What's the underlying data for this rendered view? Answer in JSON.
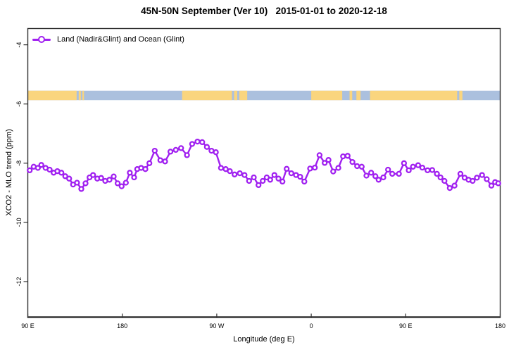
{
  "title": "45N-50N September (Ver 10)   2015-01-01 to 2020-12-18",
  "legend": {
    "label": "Land (Nadir&Glint) and Ocean (Glint)",
    "color": "#A020F0"
  },
  "chart_data": {
    "type": "line",
    "title": "45N-50N September (Ver 10)   2015-01-01 to 2020-12-18",
    "xlabel": "Longitude (deg E)",
    "ylabel": "XCO2 - MLO trend (ppm)",
    "legend_position": "top-left",
    "grid": false,
    "xlim": [
      90,
      540
    ],
    "ylim": [
      -13.19,
      -3.45
    ],
    "x_ticks": [
      {
        "pos": 90,
        "label": "90 E"
      },
      {
        "pos": 180,
        "label": "180"
      },
      {
        "pos": 270,
        "label": "90 W"
      },
      {
        "pos": 360,
        "label": "0"
      },
      {
        "pos": 450,
        "label": "90 E"
      },
      {
        "pos": 540,
        "label": "180"
      }
    ],
    "y_ticks": [
      {
        "pos": -4,
        "label": "-4"
      },
      {
        "pos": -6,
        "label": "-6"
      },
      {
        "pos": -8,
        "label": "-8"
      },
      {
        "pos": -10,
        "label": "-10"
      },
      {
        "pos": -12,
        "label": "-12"
      }
    ],
    "map_strip": {
      "description": "land-ocean world map band at 45N-50N repeated along longitude axis",
      "ocean_color": "#ABC0DE",
      "land_color": "#FAD57E",
      "y_top": -5.55,
      "y_bottom": -5.87,
      "land_segments": [
        [
          90,
          136.5
        ],
        [
          138.5,
          140.5
        ],
        [
          142,
          143.5
        ],
        [
          237,
          284.5
        ],
        [
          286.5,
          289.5
        ],
        [
          291.5,
          299
        ],
        [
          360,
          389.5
        ],
        [
          396.5,
          399
        ],
        [
          403,
          407
        ],
        [
          416,
          499
        ],
        [
          501,
          504
        ]
      ]
    },
    "series": [
      {
        "name": "Land (Nadir&Glint) and Ocean (Glint)",
        "color": "#A020F0",
        "marker": "open-circle",
        "points": [
          [
            91.8,
            -8.24
          ],
          [
            95.6,
            -8.12
          ],
          [
            99.6,
            -8.16
          ],
          [
            102.9,
            -8.06
          ],
          [
            107.0,
            -8.16
          ],
          [
            110.8,
            -8.22
          ],
          [
            114.6,
            -8.32
          ],
          [
            118.2,
            -8.27
          ],
          [
            122.0,
            -8.32
          ],
          [
            125.7,
            -8.44
          ],
          [
            129.4,
            -8.52
          ],
          [
            133.1,
            -8.72
          ],
          [
            136.9,
            -8.66
          ],
          [
            141.0,
            -8.87
          ],
          [
            145.0,
            -8.68
          ],
          [
            148.8,
            -8.48
          ],
          [
            152.2,
            -8.4
          ],
          [
            156.2,
            -8.52
          ],
          [
            159.9,
            -8.5
          ],
          [
            163.8,
            -8.6
          ],
          [
            167.8,
            -8.56
          ],
          [
            171.8,
            -8.45
          ],
          [
            175.6,
            -8.68
          ],
          [
            179.4,
            -8.78
          ],
          [
            183.4,
            -8.66
          ],
          [
            187.2,
            -8.32
          ],
          [
            191.3,
            -8.48
          ],
          [
            194.2,
            -8.2
          ],
          [
            198.0,
            -8.16
          ],
          [
            202.0,
            -8.2
          ],
          [
            205.8,
            -8.0
          ],
          [
            210.9,
            -7.58
          ],
          [
            216.3,
            -7.9
          ],
          [
            220.8,
            -7.94
          ],
          [
            225.9,
            -7.61
          ],
          [
            231.0,
            -7.55
          ],
          [
            236.0,
            -7.49
          ],
          [
            241.6,
            -7.73
          ],
          [
            246.5,
            -7.35
          ],
          [
            251.6,
            -7.27
          ],
          [
            256.1,
            -7.29
          ],
          [
            260.6,
            -7.45
          ],
          [
            265.0,
            -7.58
          ],
          [
            269.1,
            -7.63
          ],
          [
            274.0,
            -8.16
          ],
          [
            278.5,
            -8.2
          ],
          [
            282.5,
            -8.27
          ],
          [
            287.0,
            -8.38
          ],
          [
            291.9,
            -8.34
          ],
          [
            296.4,
            -8.4
          ],
          [
            300.8,
            -8.6
          ],
          [
            305.3,
            -8.48
          ],
          [
            309.8,
            -8.74
          ],
          [
            313.8,
            -8.6
          ],
          [
            317.6,
            -8.48
          ],
          [
            320.9,
            -8.56
          ],
          [
            324.9,
            -8.4
          ],
          [
            328.8,
            -8.52
          ],
          [
            332.6,
            -8.62
          ],
          [
            336.6,
            -8.19
          ],
          [
            341.0,
            -8.34
          ],
          [
            345.5,
            -8.4
          ],
          [
            349.5,
            -8.46
          ],
          [
            353.4,
            -8.62
          ],
          [
            358.9,
            -8.18
          ],
          [
            363.4,
            -8.15
          ],
          [
            367.9,
            -7.73
          ],
          [
            372.8,
            -7.99
          ],
          [
            376.4,
            -7.89
          ],
          [
            380.9,
            -8.28
          ],
          [
            385.8,
            -8.16
          ],
          [
            390.3,
            -7.77
          ],
          [
            394.7,
            -7.75
          ],
          [
            399.2,
            -7.96
          ],
          [
            403.7,
            -8.1
          ],
          [
            408.1,
            -8.12
          ],
          [
            412.6,
            -8.42
          ],
          [
            417.1,
            -8.32
          ],
          [
            421.1,
            -8.44
          ],
          [
            424.2,
            -8.56
          ],
          [
            428.7,
            -8.48
          ],
          [
            433.2,
            -8.22
          ],
          [
            437.2,
            -8.36
          ],
          [
            443.5,
            -8.36
          ],
          [
            448.4,
            -8.0
          ],
          [
            452.9,
            -8.24
          ],
          [
            456.9,
            -8.12
          ],
          [
            461.8,
            -8.07
          ],
          [
            465.8,
            -8.15
          ],
          [
            470.8,
            -8.24
          ],
          [
            475.2,
            -8.23
          ],
          [
            479.7,
            -8.36
          ],
          [
            483.1,
            -8.48
          ],
          [
            486.9,
            -8.6
          ],
          [
            492.0,
            -8.84
          ],
          [
            496.5,
            -8.76
          ],
          [
            502.1,
            -8.36
          ],
          [
            506.1,
            -8.49
          ],
          [
            509.9,
            -8.56
          ],
          [
            513.7,
            -8.6
          ],
          [
            517.8,
            -8.49
          ],
          [
            522.7,
            -8.4
          ],
          [
            527.2,
            -8.54
          ],
          [
            531.6,
            -8.76
          ],
          [
            535.2,
            -8.64
          ],
          [
            538.2,
            -8.68
          ]
        ]
      }
    ]
  }
}
